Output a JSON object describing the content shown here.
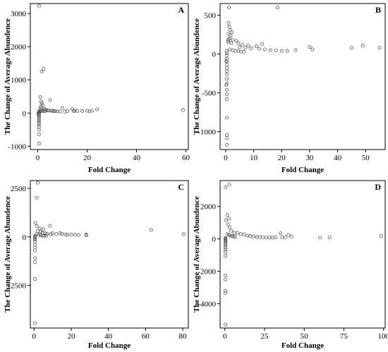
{
  "chart_data": [
    {
      "type": "scatter",
      "panel_label": "A",
      "xlabel": "Fold Change",
      "ylabel": "The Change of Average Abundence",
      "xlim": [
        -3,
        61
      ],
      "ylim": [
        -1100,
        3300
      ],
      "xticks": [
        0,
        20,
        40,
        60
      ],
      "yticks": [
        -1000,
        0,
        1000,
        2000,
        3000
      ],
      "points": [
        [
          0.6,
          3230
        ],
        [
          1.6,
          1250
        ],
        [
          2.4,
          1330
        ],
        [
          5,
          390
        ],
        [
          1,
          480
        ],
        [
          1.3,
          350
        ],
        [
          1.7,
          300
        ],
        [
          2,
          240
        ],
        [
          1.2,
          200
        ],
        [
          1.5,
          160
        ],
        [
          2.5,
          130
        ],
        [
          3,
          110
        ],
        [
          3.5,
          90
        ],
        [
          4,
          80
        ],
        [
          4.5,
          75
        ],
        [
          5.5,
          70
        ],
        [
          6,
          65
        ],
        [
          6.5,
          60
        ],
        [
          7,
          55
        ],
        [
          8,
          50
        ],
        [
          9,
          45
        ],
        [
          10,
          150
        ],
        [
          11,
          40
        ],
        [
          12,
          60
        ],
        [
          14,
          120
        ],
        [
          14.5,
          60
        ],
        [
          15,
          70
        ],
        [
          16,
          60
        ],
        [
          18,
          60
        ],
        [
          20,
          70
        ],
        [
          21,
          50
        ],
        [
          22,
          70
        ],
        [
          24,
          110
        ],
        [
          58.8,
          90
        ],
        [
          0.5,
          40
        ],
        [
          0.5,
          20
        ],
        [
          0.5,
          -20
        ],
        [
          0.5,
          -60
        ],
        [
          0.5,
          -100
        ],
        [
          0.5,
          -150
        ],
        [
          0.5,
          -200
        ],
        [
          0.5,
          -250
        ],
        [
          0.5,
          -300
        ],
        [
          0.5,
          -350
        ],
        [
          0.5,
          -420
        ],
        [
          0.5,
          -500
        ],
        [
          0.5,
          -640
        ],
        [
          0.5,
          -920
        ],
        [
          0.3,
          10
        ],
        [
          0.3,
          -40
        ],
        [
          0.8,
          60
        ],
        [
          0.8,
          100
        ],
        [
          1,
          40
        ],
        [
          1.5,
          60
        ],
        [
          2,
          80
        ],
        [
          2.5,
          60
        ],
        [
          3,
          60
        ]
      ]
    },
    {
      "type": "scatter",
      "panel_label": "B",
      "xlabel": "Fold Change",
      "ylabel": "The Change of Average Abundence",
      "xlim": [
        -2,
        57
      ],
      "ylim": [
        -1230,
        650
      ],
      "xticks": [
        0,
        10,
        20,
        30,
        40,
        50
      ],
      "yticks": [
        -1000,
        -500,
        0,
        500
      ],
      "points": [
        [
          1.2,
          600
        ],
        [
          18.5,
          600
        ],
        [
          1,
          400
        ],
        [
          1.3,
          350
        ],
        [
          1.6,
          310
        ],
        [
          2.2,
          280
        ],
        [
          1,
          260
        ],
        [
          1.8,
          240
        ],
        [
          1.5,
          200
        ],
        [
          1,
          190
        ],
        [
          2.5,
          180
        ],
        [
          0.8,
          170
        ],
        [
          1,
          150
        ],
        [
          2,
          140
        ],
        [
          3.8,
          170
        ],
        [
          4.5,
          140
        ],
        [
          6,
          120
        ],
        [
          8,
          110
        ],
        [
          11,
          100
        ],
        [
          13,
          130
        ],
        [
          5,
          90
        ],
        [
          7,
          80
        ],
        [
          9,
          75
        ],
        [
          12,
          70
        ],
        [
          14,
          60
        ],
        [
          16,
          50
        ],
        [
          18,
          45
        ],
        [
          20,
          40
        ],
        [
          22,
          40
        ],
        [
          25,
          50
        ],
        [
          30,
          90
        ],
        [
          31,
          60
        ],
        [
          45,
          80
        ],
        [
          49,
          110
        ],
        [
          55,
          80
        ],
        [
          1.5,
          60
        ],
        [
          2.5,
          50
        ],
        [
          3.5,
          40
        ],
        [
          4.5,
          40
        ],
        [
          5.5,
          30
        ],
        [
          6.5,
          30
        ],
        [
          0.4,
          40
        ],
        [
          0.4,
          10
        ],
        [
          0.4,
          -20
        ],
        [
          0.4,
          -60
        ],
        [
          0.4,
          -100
        ],
        [
          0.4,
          -140
        ],
        [
          0.4,
          -180
        ],
        [
          0.4,
          -220
        ],
        [
          0.4,
          -260
        ],
        [
          0.4,
          -320
        ],
        [
          0.4,
          -380
        ],
        [
          0.4,
          -460
        ],
        [
          0.4,
          -520
        ],
        [
          0.4,
          -580
        ],
        [
          0.4,
          -820
        ],
        [
          0.4,
          -1040
        ],
        [
          0.4,
          -1080
        ],
        [
          0.4,
          -1170
        ],
        [
          0.2,
          -90
        ],
        [
          0.2,
          -400
        ]
      ]
    },
    {
      "type": "scatter",
      "panel_label": "C",
      "xlabel": "Fold Change",
      "ylabel": "The Change of Average Abundence",
      "xlim": [
        -2,
        83
      ],
      "ylim": [
        -4700,
        2900
      ],
      "xticks": [
        0,
        20,
        40,
        60,
        80
      ],
      "yticks": [
        -2500,
        0,
        2500
      ],
      "points": [
        [
          2,
          2790
        ],
        [
          1.5,
          2020
        ],
        [
          0.7,
          720
        ],
        [
          1.5,
          560
        ],
        [
          8.5,
          570
        ],
        [
          3,
          430
        ],
        [
          5,
          380
        ],
        [
          2,
          300
        ],
        [
          3.5,
          250
        ],
        [
          4.5,
          200
        ],
        [
          6,
          180
        ],
        [
          7,
          150
        ],
        [
          9,
          130
        ],
        [
          10,
          180
        ],
        [
          12,
          150
        ],
        [
          14,
          190
        ],
        [
          15,
          150
        ],
        [
          17,
          120
        ],
        [
          18,
          100
        ],
        [
          20,
          120
        ],
        [
          22,
          110
        ],
        [
          24,
          90
        ],
        [
          28,
          120
        ],
        [
          28.2,
          80
        ],
        [
          63,
          360
        ],
        [
          80.5,
          140
        ],
        [
          1.5,
          150
        ],
        [
          2.5,
          100
        ],
        [
          3.5,
          80
        ],
        [
          4.5,
          60
        ],
        [
          5.5,
          60
        ],
        [
          6.5,
          50
        ],
        [
          0.5,
          60
        ],
        [
          0.5,
          20
        ],
        [
          0.5,
          -20
        ],
        [
          0.5,
          -80
        ],
        [
          0.5,
          -150
        ],
        [
          0.5,
          -250
        ],
        [
          0.5,
          -400
        ],
        [
          0.5,
          -550
        ],
        [
          0.5,
          -700
        ],
        [
          0.5,
          -1100
        ],
        [
          0.5,
          -1300
        ],
        [
          0.5,
          -2170
        ],
        [
          0.5,
          -4450
        ]
      ]
    },
    {
      "type": "scatter",
      "panel_label": "D",
      "xlabel": "Fold Change",
      "ylabel": "The Change of Average Abundence",
      "xlim": [
        -3,
        101
      ],
      "ylim": [
        -5500,
        3600
      ],
      "xticks": [
        0,
        25,
        50,
        75,
        100
      ],
      "yticks": [
        -4000,
        -2000,
        0,
        2000
      ],
      "points": [
        [
          2.8,
          3350
        ],
        [
          0.5,
          3180
        ],
        [
          1.5,
          1480
        ],
        [
          2.5,
          1250
        ],
        [
          0.8,
          1150
        ],
        [
          2,
          900
        ],
        [
          3,
          700
        ],
        [
          4,
          500
        ],
        [
          6,
          380
        ],
        [
          8,
          360
        ],
        [
          10,
          300
        ],
        [
          12,
          280
        ],
        [
          14,
          200
        ],
        [
          16,
          180
        ],
        [
          18,
          150
        ],
        [
          20,
          120
        ],
        [
          22,
          110
        ],
        [
          24,
          100
        ],
        [
          26,
          90
        ],
        [
          28,
          80
        ],
        [
          30,
          80
        ],
        [
          32,
          90
        ],
        [
          35,
          350
        ],
        [
          36,
          100
        ],
        [
          38,
          90
        ],
        [
          40,
          250
        ],
        [
          42,
          150
        ],
        [
          60,
          80
        ],
        [
          66,
          90
        ],
        [
          98.5,
          180
        ],
        [
          1.5,
          300
        ],
        [
          2.5,
          250
        ],
        [
          3.5,
          200
        ],
        [
          4.5,
          180
        ],
        [
          5.5,
          150
        ],
        [
          6.5,
          120
        ],
        [
          0.4,
          60
        ],
        [
          0.4,
          20
        ],
        [
          0.4,
          -30
        ],
        [
          0.4,
          -80
        ],
        [
          0.4,
          -150
        ],
        [
          0.4,
          -220
        ],
        [
          0.4,
          -300
        ],
        [
          0.4,
          -400
        ],
        [
          0.4,
          -520
        ],
        [
          0.4,
          -650
        ],
        [
          0.4,
          -800
        ],
        [
          0.4,
          -1050
        ],
        [
          0.4,
          -2250
        ],
        [
          0.4,
          -2500
        ],
        [
          0.4,
          -3200
        ],
        [
          0.4,
          -3350
        ],
        [
          0.4,
          -5280
        ]
      ]
    }
  ]
}
